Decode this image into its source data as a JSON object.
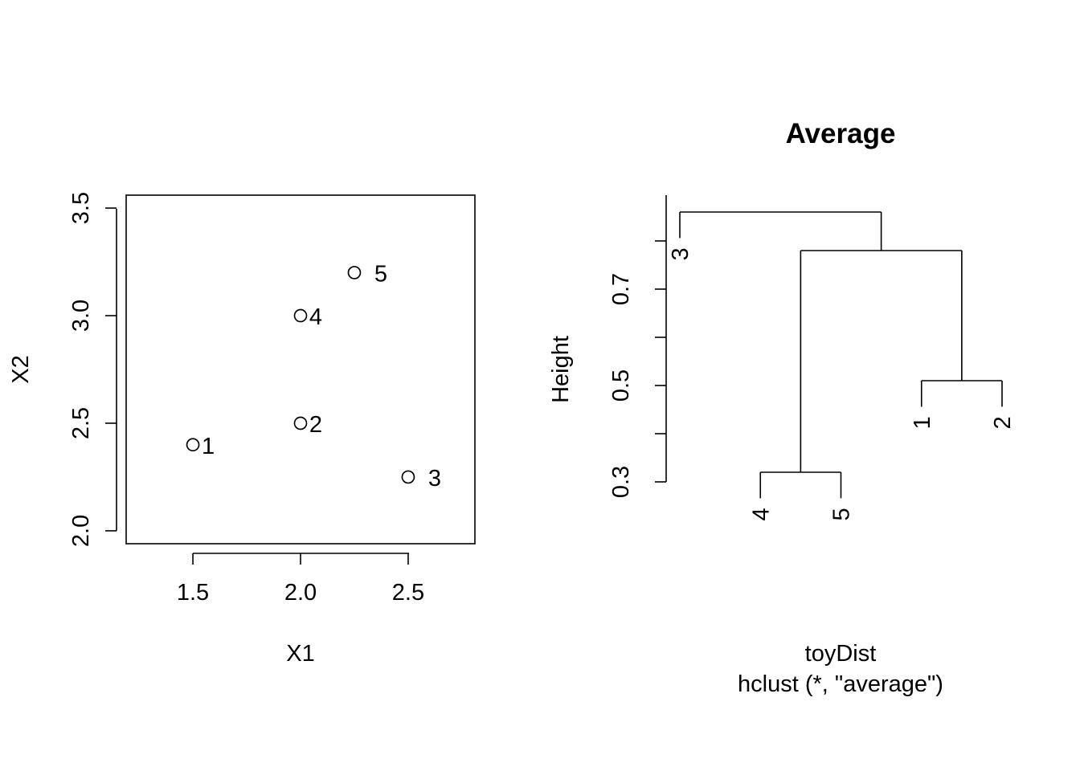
{
  "chart_data": [
    {
      "type": "scatter",
      "title": "",
      "xlabel": "X1",
      "ylabel": "X2",
      "xlim": [
        1.19,
        2.81
      ],
      "ylim": [
        1.94,
        3.56
      ],
      "x_ticks": [
        "1.5",
        "2.0",
        "2.5"
      ],
      "y_ticks": [
        "2.0",
        "2.5",
        "3.0",
        "3.5"
      ],
      "points": [
        {
          "label": "1",
          "x": 1.5,
          "y": 2.4
        },
        {
          "label": "2",
          "x": 2.0,
          "y": 2.5
        },
        {
          "label": "3",
          "x": 2.5,
          "y": 2.25
        },
        {
          "label": "4",
          "x": 2.0,
          "y": 3.0
        },
        {
          "label": "5",
          "x": 2.25,
          "y": 3.2
        }
      ]
    },
    {
      "type": "dendrogram",
      "title": "Average",
      "ylabel": "Height",
      "xlabel": "toyDist",
      "sub": "hclust (*, \"average\")",
      "y_ticks": [
        "0.3",
        "0.5",
        "0.7"
      ],
      "leaf_order": [
        "3",
        "4",
        "5",
        "1",
        "2"
      ],
      "merges": [
        {
          "left": "4",
          "right": "5",
          "height": 0.32
        },
        {
          "left": "1",
          "right": "2",
          "height": 0.51
        },
        {
          "left": "4,5",
          "right": "1,2",
          "height": 0.78
        },
        {
          "left": "3",
          "right": "4,5,1,2",
          "height": 0.86
        }
      ]
    }
  ]
}
